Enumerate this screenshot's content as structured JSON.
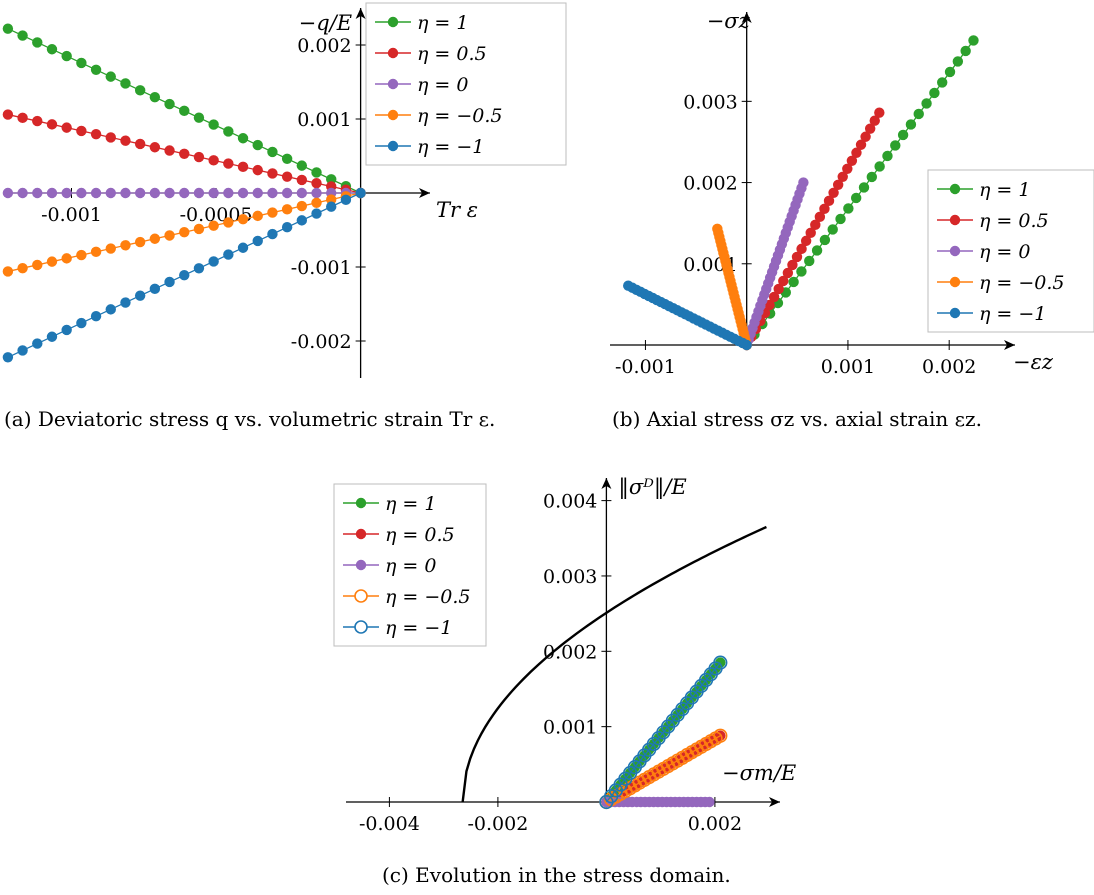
{
  "colors": {
    "eta_1": "#2ca02c",
    "eta_0.5": "#d62728",
    "eta_0": "#9467bd",
    "eta_-0.5": "#ff7f0e",
    "eta_-1": "#1f77b4",
    "yield_curve": "#000000"
  },
  "chart_data": [
    {
      "id": "a",
      "type": "line",
      "caption": "(a) Deviatoric stress q vs. volumetric strain Tr ε.",
      "xlabel": "Tr ε",
      "ylabel": "−q/E",
      "xlim": [
        -0.00123,
        0.00024
      ],
      "ylim": [
        -0.0025,
        0.0025
      ],
      "xticks": [
        {
          "v": -0.001,
          "label": "-0.001"
        },
        {
          "v": -0.0005,
          "label": "-0.0005"
        }
      ],
      "yticks": [
        {
          "v": 0.002,
          "label": "0.002"
        },
        {
          "v": 0.001,
          "label": "0.001"
        },
        {
          "v": -0.001,
          "label": "-0.001"
        },
        {
          "v": -0.002,
          "label": "-0.002"
        }
      ],
      "legend_position": "top-right",
      "series": [
        {
          "name": "η = 1",
          "color_key": "eta_1",
          "marker": "filled",
          "start": [
            -0.00122,
            0.00222
          ],
          "end": [
            0,
            0
          ],
          "points": 25
        },
        {
          "name": "η = 0.5",
          "color_key": "eta_0.5",
          "marker": "filled",
          "start": [
            -0.00122,
            0.00106
          ],
          "end": [
            0,
            0
          ],
          "points": 25
        },
        {
          "name": "η = 0",
          "color_key": "eta_0",
          "marker": "filled",
          "start": [
            -0.00122,
            0.0
          ],
          "end": [
            0,
            0
          ],
          "points": 25
        },
        {
          "name": "η = −0.5",
          "color_key": "eta_-0.5",
          "marker": "filled",
          "start": [
            -0.00122,
            -0.00106
          ],
          "end": [
            0,
            0
          ],
          "points": 25
        },
        {
          "name": "η = −1",
          "color_key": "eta_-1",
          "marker": "filled",
          "start": [
            -0.00122,
            -0.00222
          ],
          "end": [
            0,
            0
          ],
          "points": 25
        }
      ]
    },
    {
      "id": "b",
      "type": "line",
      "caption": "(b) Axial stress σz vs. axial strain εz.",
      "xlabel": "−εz",
      "ylabel": "−σz",
      "xlim": [
        -0.00135,
        0.00265
      ],
      "ylim": [
        0,
        0.0041
      ],
      "xticks": [
        {
          "v": -0.001,
          "label": "-0.001"
        },
        {
          "v": 0.001,
          "label": "0.001"
        },
        {
          "v": 0.002,
          "label": "0.002"
        }
      ],
      "yticks": [
        {
          "v": 0.001,
          "label": "0.001"
        },
        {
          "v": 0.002,
          "label": "0.002"
        },
        {
          "v": 0.003,
          "label": "0.003"
        }
      ],
      "legend_position": "right",
      "series": [
        {
          "name": "η = 1",
          "color_key": "eta_1",
          "marker": "filled",
          "start": [
            0,
            0
          ],
          "end": [
            0.00224,
            0.00375
          ],
          "points": 30
        },
        {
          "name": "η = 0.5",
          "color_key": "eta_0.5",
          "marker": "filled",
          "start": [
            0,
            0
          ],
          "end": [
            0.00131,
            0.00286
          ],
          "points": 30
        },
        {
          "name": "η = 0",
          "color_key": "eta_0",
          "marker": "filled",
          "start": [
            0,
            0
          ],
          "end": [
            0.00056,
            0.002
          ],
          "points": 30
        },
        {
          "name": "η = −0.5",
          "color_key": "eta_-0.5",
          "marker": "filled",
          "start": [
            0,
            0
          ],
          "end": [
            -0.00029,
            0.00143
          ],
          "points": 30
        },
        {
          "name": "η = −1",
          "color_key": "eta_-1",
          "marker": "filled",
          "start": [
            0,
            0
          ],
          "end": [
            -0.00117,
            0.00073
          ],
          "points": 30
        }
      ]
    },
    {
      "id": "c",
      "type": "line",
      "caption": "(c) Evolution in the stress domain.",
      "xlabel": "−σm/E",
      "ylabel": "‖σᴰ‖/E",
      "xlim": [
        -0.0048,
        0.0032
      ],
      "ylim": [
        0,
        0.0043
      ],
      "xticks": [
        {
          "v": -0.004,
          "label": "-0.004"
        },
        {
          "v": -0.002,
          "label": "-0.002"
        },
        {
          "v": 0.002,
          "label": "0.002"
        }
      ],
      "yticks": [
        {
          "v": 0.001,
          "label": "0.001"
        },
        {
          "v": 0.002,
          "label": "0.002"
        },
        {
          "v": 0.003,
          "label": "0.003"
        },
        {
          "v": 0.004,
          "label": "0.004"
        }
      ],
      "legend_position": "top-left",
      "yield_curve": {
        "x_start": -0.00265,
        "x_end": 0.00295,
        "y_at_end": 0.00365
      },
      "series": [
        {
          "name": "η = 1",
          "color_key": "eta_1",
          "marker": "filled",
          "start": [
            0,
            0
          ],
          "end": [
            0.0021,
            0.00185
          ],
          "points": 25
        },
        {
          "name": "η = 0.5",
          "color_key": "eta_0.5",
          "marker": "filled",
          "start": [
            0,
            0
          ],
          "end": [
            0.0021,
            0.00088
          ],
          "points": 25
        },
        {
          "name": "η = 0",
          "color_key": "eta_0",
          "marker": "filled",
          "start": [
            0,
            0
          ],
          "end": [
            0.0019,
            0.0
          ],
          "points": 25
        },
        {
          "name": "η = −0.5",
          "color_key": "eta_-0.5",
          "marker": "hollow",
          "start": [
            0,
            0
          ],
          "end": [
            0.0021,
            0.00088
          ],
          "points": 25
        },
        {
          "name": "η = −1",
          "color_key": "eta_-1",
          "marker": "hollow",
          "start": [
            0,
            0
          ],
          "end": [
            0.0021,
            0.00185
          ],
          "points": 25
        }
      ]
    }
  ]
}
